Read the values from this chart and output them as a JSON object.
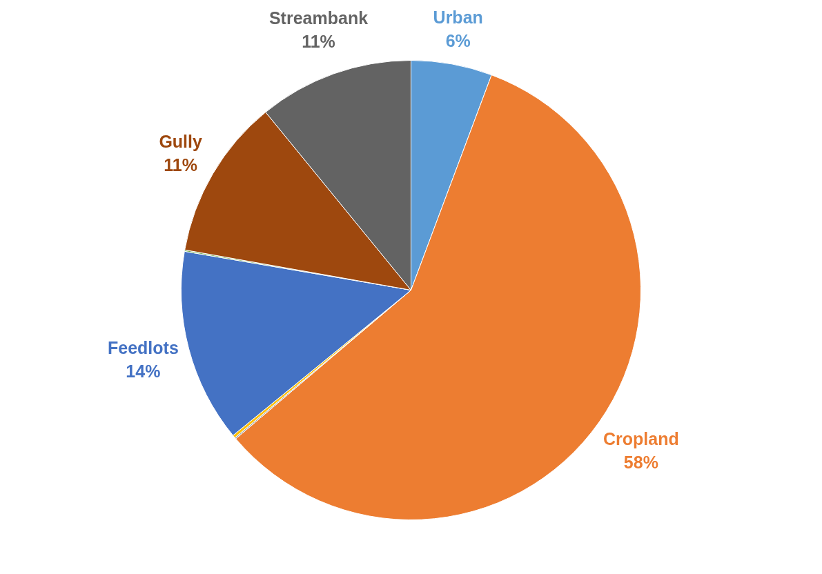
{
  "chart_data": {
    "type": "pie",
    "categories": [
      "Urban",
      "Cropland",
      null,
      null,
      "Feedlots",
      null,
      "Gully",
      "Streambank"
    ],
    "values": [
      5.7,
      58.1,
      0.1,
      0.2,
      13.6,
      0.1,
      11.3,
      10.9
    ],
    "value_labels": [
      "6%",
      "58%",
      null,
      null,
      "14%",
      null,
      "11%",
      "11%"
    ],
    "colors": [
      "#5b9bd5",
      "#ed7d31",
      "#a5a5a5",
      "#ffc000",
      "#4472c4",
      "#70ad47",
      "#9e480e",
      "#636363"
    ]
  }
}
